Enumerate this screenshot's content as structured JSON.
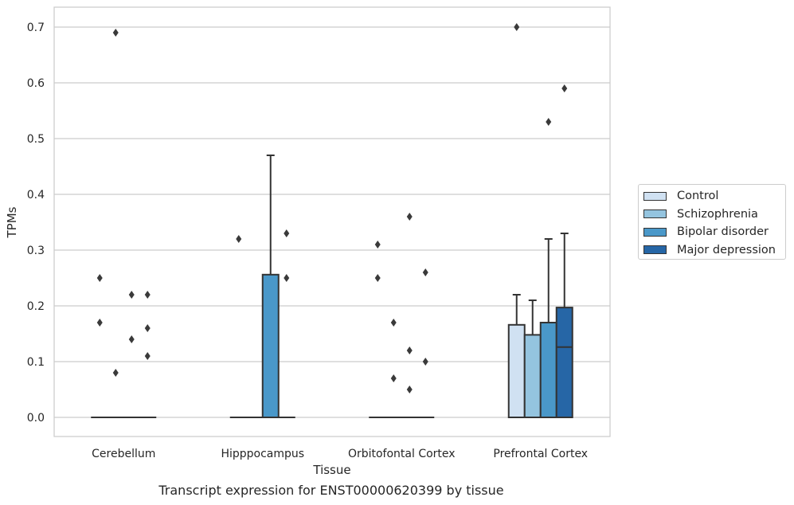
{
  "caption": "Transcript expression for ENST00000620399 by tissue",
  "chart_data": {
    "type": "box",
    "xlabel": "Tissue",
    "ylabel": "TPMs",
    "ylim": [
      -0.034,
      0.736
    ],
    "yticks": [
      "0.0",
      "0.1",
      "0.2",
      "0.3",
      "0.4",
      "0.5",
      "0.6",
      "0.7"
    ],
    "grid": true,
    "legend_position": "right",
    "categories": [
      "Cerebellum",
      "Hipppocampus",
      "Orbitofontal Cortex",
      "Prefrontal Cortex"
    ],
    "series": [
      {
        "name": "Control",
        "color": "#d0e1f2",
        "boxes": [
          {
            "q1": 0,
            "median": 0,
            "q3": 0,
            "whisker_low": 0,
            "whisker_high": 0,
            "outliers": [
              0.25,
              0.17
            ]
          },
          {
            "q1": 0,
            "median": 0,
            "q3": 0,
            "whisker_low": 0,
            "whisker_high": 0,
            "outliers": [
              0.32
            ]
          },
          {
            "q1": 0,
            "median": 0,
            "q3": 0,
            "whisker_low": 0,
            "whisker_high": 0,
            "outliers": [
              0.31,
              0.25
            ]
          },
          {
            "q1": 0,
            "median": 0,
            "q3": 0.166,
            "whisker_low": 0,
            "whisker_high": 0.22,
            "outliers": [
              0.7
            ]
          }
        ]
      },
      {
        "name": "Schizophrenia",
        "color": "#94c4df",
        "boxes": [
          {
            "q1": 0,
            "median": 0,
            "q3": 0,
            "whisker_low": 0,
            "whisker_high": 0,
            "outliers": [
              0.69,
              0.08
            ]
          },
          {
            "q1": 0,
            "median": 0,
            "q3": 0,
            "whisker_low": 0,
            "whisker_high": 0,
            "outliers": []
          },
          {
            "q1": 0,
            "median": 0,
            "q3": 0,
            "whisker_low": 0,
            "whisker_high": 0,
            "outliers": [
              0.17,
              0.07
            ]
          },
          {
            "q1": 0,
            "median": 0,
            "q3": 0.148,
            "whisker_low": 0,
            "whisker_high": 0.21,
            "outliers": []
          }
        ]
      },
      {
        "name": "Bipolar disorder",
        "color": "#4a98c9",
        "boxes": [
          {
            "q1": 0,
            "median": 0,
            "q3": 0,
            "whisker_low": 0,
            "whisker_high": 0,
            "outliers": [
              0.22,
              0.14
            ]
          },
          {
            "q1": 0,
            "median": 0,
            "q3": 0.256,
            "whisker_low": 0,
            "whisker_high": 0.47,
            "outliers": []
          },
          {
            "q1": 0,
            "median": 0,
            "q3": 0,
            "whisker_low": 0,
            "whisker_high": 0,
            "outliers": [
              0.36,
              0.12,
              0.05
            ]
          },
          {
            "q1": 0,
            "median": 0,
            "q3": 0.17,
            "whisker_low": 0,
            "whisker_high": 0.32,
            "outliers": [
              0.53
            ]
          }
        ]
      },
      {
        "name": "Major depression",
        "color": "#2666a6",
        "boxes": [
          {
            "q1": 0,
            "median": 0,
            "q3": 0,
            "whisker_low": 0,
            "whisker_high": 0,
            "outliers": [
              0.22,
              0.16,
              0.11
            ]
          },
          {
            "q1": 0,
            "median": 0,
            "q3": 0,
            "whisker_low": 0,
            "whisker_high": 0,
            "outliers": [
              0.33,
              0.25
            ]
          },
          {
            "q1": 0,
            "median": 0,
            "q3": 0,
            "whisker_low": 0,
            "whisker_high": 0,
            "outliers": [
              0.26,
              0.1
            ]
          },
          {
            "q1": 0,
            "median": 0.126,
            "q3": 0.197,
            "whisker_low": 0,
            "whisker_high": 0.33,
            "outliers": [
              0.59
            ]
          }
        ]
      }
    ]
  }
}
